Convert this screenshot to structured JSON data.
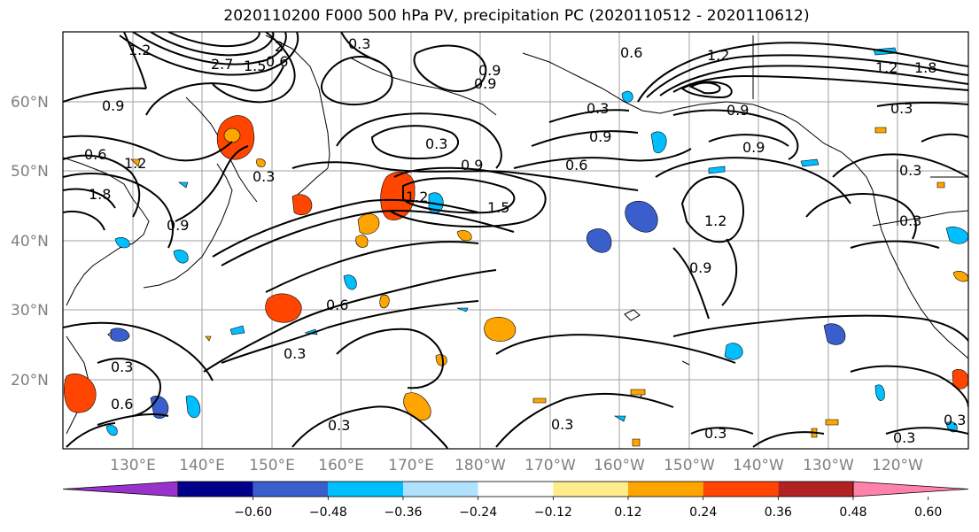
{
  "title": "2020110200 F000 500 hPa PV, precipitation PC (2020110512 - 2020110612)",
  "lat_labels": [
    "60°N",
    "50°N",
    "40°N",
    "30°N",
    "20°N"
  ],
  "lon_labels": [
    "130°E",
    "140°E",
    "150°E",
    "160°E",
    "170°E",
    "180°W",
    "170°W",
    "160°W",
    "150°W",
    "140°W",
    "130°W",
    "120°W"
  ],
  "contour_labels": [
    "1.2",
    "2.7",
    "1.5",
    "2",
    "0.3",
    "0.6",
    "0.9",
    "0.6",
    "0.9",
    "1.2",
    "1.8",
    "0.3",
    "0.9",
    "0.6",
    "1.2",
    "0.9",
    "0.3",
    "0.3",
    "0.9",
    "0.9",
    "0.6",
    "1.2",
    "1.5",
    "1.2",
    "0.9",
    "0.3",
    "0.6",
    "0.3",
    "0.3",
    "0.6",
    "0.3",
    "0.3",
    "0.3",
    "0.3",
    "0.3",
    "1.8",
    "0.3",
    "1.2",
    "0.9",
    "0.9",
    "0.3"
  ],
  "colorbar": {
    "colors": [
      "#9932cc",
      "#00008b",
      "#3a5fcd",
      "#00bfff",
      "#b0e2ff",
      "#ffffff",
      "#ffec8b",
      "#ffa500",
      "#ff4500",
      "#b22222",
      "#ff82ab"
    ],
    "ticks": [
      "−0.60",
      "−0.48",
      "−0.36",
      "−0.24",
      "−0.12",
      "0.12",
      "0.24",
      "0.36",
      "0.48",
      "0.60"
    ]
  }
}
